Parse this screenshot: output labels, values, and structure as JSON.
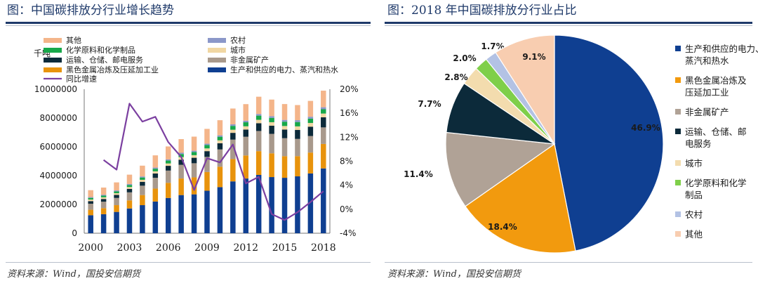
{
  "left_panel": {
    "title": "图：中国碳排放分行业增长趋势",
    "source": "资料来源：Wind，国投安信期货"
  },
  "right_panel": {
    "title": "图：2018 年中国碳排放分行业占比",
    "source": "资料来源：Wind，国投安信期货"
  },
  "chart_data": [
    {
      "type": "bar",
      "stacked": true,
      "unit_label": "千吨",
      "title": "中国碳排放分行业增长趋势",
      "categories": [
        "2000",
        "2001",
        "2002",
        "2003",
        "2004",
        "2005",
        "2006",
        "2007",
        "2008",
        "2009",
        "2010",
        "2011",
        "2012",
        "2013",
        "2014",
        "2015",
        "2016",
        "2017",
        "2018"
      ],
      "x_tick_labels": [
        "2000",
        "2003",
        "2006",
        "2009",
        "2012",
        "2015",
        "2018"
      ],
      "y_ticks": [
        "10000000",
        "8000000",
        "6000000",
        "4000000",
        "2000000",
        "0"
      ],
      "ylim": [
        0,
        10000000
      ],
      "y2_ticks": [
        "20%",
        "16%",
        "12%",
        "8%",
        "4%",
        "0%",
        "-4%"
      ],
      "y2lim": [
        -4,
        20
      ],
      "series": [
        {
          "name": "生产和供应的电力、蒸汽和热水",
          "color": "#0f3f91",
          "values": [
            1250000,
            1320000,
            1480000,
            1720000,
            1950000,
            2200000,
            2450000,
            2650000,
            2700000,
            2950000,
            3200000,
            3600000,
            3800000,
            4050000,
            3900000,
            3850000,
            3950000,
            4150000,
            4500000
          ]
        },
        {
          "name": "黑色金属冶炼及压延加工业",
          "color": "#e8930c",
          "values": [
            380000,
            420000,
            470000,
            560000,
            700000,
            900000,
            1050000,
            1150000,
            1180000,
            1300000,
            1420000,
            1550000,
            1600000,
            1650000,
            1650000,
            1500000,
            1400000,
            1450000,
            1700000
          ]
        },
        {
          "name": "非金属矿产",
          "color": "#a8998c",
          "values": [
            420000,
            450000,
            500000,
            560000,
            650000,
            750000,
            850000,
            950000,
            980000,
            1050000,
            1200000,
            1350000,
            1300000,
            1400000,
            1350000,
            1250000,
            1200000,
            1150000,
            1150000
          ]
        },
        {
          "name": "运输、仓储、邮电服务",
          "color": "#0c2a3a",
          "values": [
            180000,
            190000,
            210000,
            240000,
            270000,
            300000,
            330000,
            360000,
            380000,
            400000,
            430000,
            470000,
            500000,
            540000,
            570000,
            600000,
            620000,
            650000,
            700000
          ]
        },
        {
          "name": "城市",
          "color": "#f1d7a3",
          "values": [
            110000,
            115000,
            120000,
            130000,
            140000,
            150000,
            165000,
            175000,
            180000,
            190000,
            200000,
            215000,
            225000,
            235000,
            240000,
            245000,
            250000,
            255000,
            260000
          ]
        },
        {
          "name": "化学原料和化学制品",
          "color": "#17a84a",
          "values": [
            110000,
            115000,
            125000,
            140000,
            160000,
            180000,
            200000,
            215000,
            220000,
            235000,
            250000,
            270000,
            280000,
            290000,
            300000,
            300000,
            300000,
            300000,
            300000
          ]
        },
        {
          "name": "农村",
          "color": "#8b97c9",
          "values": [
            60000,
            62000,
            65000,
            68000,
            72000,
            78000,
            82000,
            86000,
            88000,
            92000,
            98000,
            105000,
            110000,
            115000,
            120000,
            125000,
            130000,
            135000,
            140000
          ]
        },
        {
          "name": "其他",
          "color": "#f4b58a",
          "values": [
            480000,
            500000,
            560000,
            650000,
            750000,
            850000,
            900000,
            950000,
            980000,
            1030000,
            1050000,
            1100000,
            1150000,
            1200000,
            1150000,
            1100000,
            1050000,
            1100000,
            1150000
          ]
        }
      ],
      "line_series": {
        "name": "同比增速",
        "color": "#7b3fa0",
        "values": [
          8.2,
          6.6,
          17.6,
          14.6,
          15.4,
          11.2,
          8.7,
          3.2,
          8.5,
          7.8,
          10.8,
          4.3,
          5.4,
          -0.8,
          -1.8,
          -0.5,
          1.2,
          3.0
        ]
      },
      "line_categories": [
        "2001",
        "2002",
        "2003",
        "2004",
        "2005",
        "2006",
        "2007",
        "2008",
        "2009",
        "2010",
        "2011",
        "2012",
        "2013",
        "2014",
        "2015",
        "2016",
        "2017",
        "2018"
      ]
    },
    {
      "type": "pie",
      "title": "2018 年中国碳排放分行业占比",
      "slices": [
        {
          "name": "生产和供应的电力、蒸汽和热水",
          "value": 46.9,
          "label": "46.9%",
          "color": "#0f3f91"
        },
        {
          "name": "黑色金属冶炼及压延加工业",
          "value": 18.4,
          "label": "18.4%",
          "color": "#f29a0e"
        },
        {
          "name": "非金属矿产",
          "value": 11.4,
          "label": "11.4%",
          "color": "#b0a296"
        },
        {
          "name": "运输、仓储、邮电服务",
          "value": 7.7,
          "label": "7.7%",
          "color": "#0c2a3a"
        },
        {
          "name": "城市",
          "value": 2.8,
          "label": "2.8%",
          "color": "#f3dcae"
        },
        {
          "name": "化学原料和化学制品",
          "value": 2.0,
          "label": "2.0%",
          "color": "#7fcf4a"
        },
        {
          "name": "农村",
          "value": 1.7,
          "label": "1.7%",
          "color": "#b3c2e4"
        },
        {
          "name": "其他",
          "value": 9.1,
          "label": "9.1%",
          "color": "#f8cdb0"
        }
      ],
      "legend": [
        {
          "lines": [
            "生产和供应的电力、",
            "蒸汽和热水"
          ],
          "color": "#0f3f91"
        },
        {
          "lines": [
            "黑色金属冶炼及",
            "压延加工业"
          ],
          "color": "#f29a0e"
        },
        {
          "lines": [
            "非金属矿产"
          ],
          "color": "#b0a296"
        },
        {
          "lines": [
            "运输、仓储、邮",
            "电服务"
          ],
          "color": "#0c2a3a"
        },
        {
          "lines": [
            "城市"
          ],
          "color": "#f3dcae"
        },
        {
          "lines": [
            "化学原料和化学",
            "制品"
          ],
          "color": "#7fcf4a"
        },
        {
          "lines": [
            "农村"
          ],
          "color": "#b3c2e4"
        },
        {
          "lines": [
            "其他"
          ],
          "color": "#f8cdb0"
        }
      ]
    }
  ]
}
